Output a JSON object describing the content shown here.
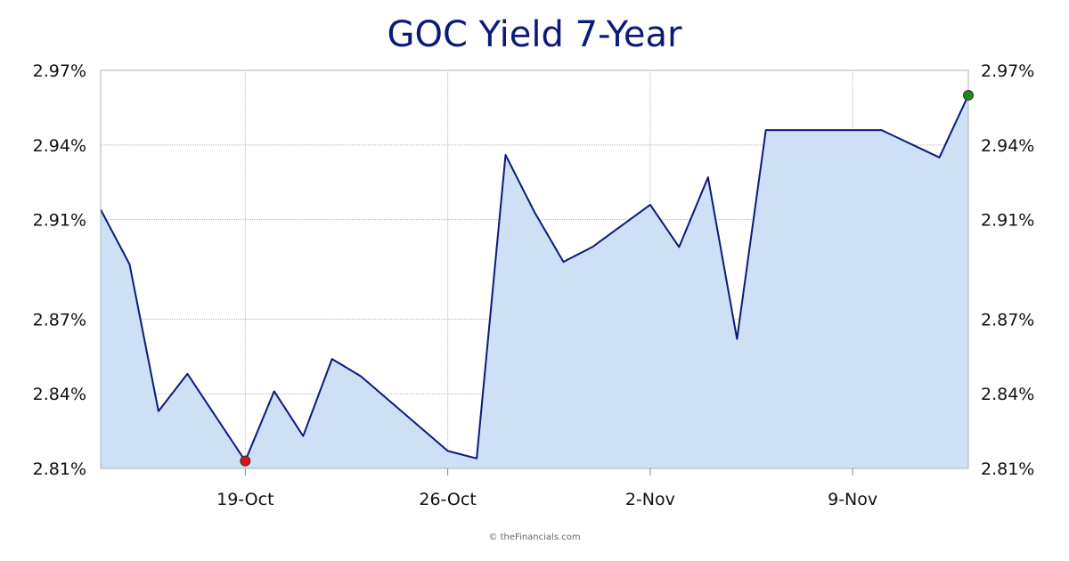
{
  "chart_data": {
    "type": "area",
    "title": "GOC Yield 7-Year",
    "xlabel": "",
    "ylabel": "",
    "ylim": [
      2.81,
      2.97
    ],
    "y_ticks": [
      "2.97%",
      "2.94%",
      "2.91%",
      "2.87%",
      "2.84%",
      "2.81%"
    ],
    "y_tick_values": [
      2.97,
      2.94,
      2.91,
      2.87,
      2.84,
      2.81
    ],
    "x_ticks": [
      "19-Oct",
      "26-Oct",
      "2-Nov",
      "9-Nov"
    ],
    "x_tick_dates": [
      "2018-10-19",
      "2018-10-26",
      "2018-11-02",
      "2018-11-09"
    ],
    "x_range": [
      "2018-10-14",
      "2018-11-13"
    ],
    "grid": true,
    "y_axis_both_sides": true,
    "colors": {
      "line": "#0a1a7a",
      "fill": "#cde0f6",
      "min_marker": "#e0101a",
      "max_marker": "#1a8a1a",
      "title": "#0a1a7a"
    },
    "series": [
      {
        "x": [
          "2018-10-14",
          "2018-10-15",
          "2018-10-16",
          "2018-10-17",
          "2018-10-19",
          "2018-10-20",
          "2018-10-21",
          "2018-10-22",
          "2018-10-23",
          "2018-10-26",
          "2018-10-27",
          "2018-10-28",
          "2018-10-29",
          "2018-10-30",
          "2018-10-31",
          "2018-11-02",
          "2018-11-03",
          "2018-11-04",
          "2018-11-05",
          "2018-11-06",
          "2018-11-07",
          "2018-11-10",
          "2018-11-12",
          "2018-11-13"
        ],
        "values": [
          2.914,
          2.892,
          2.833,
          2.848,
          2.813,
          2.841,
          2.823,
          2.854,
          2.847,
          2.817,
          2.814,
          2.936,
          2.913,
          2.893,
          2.899,
          2.916,
          2.899,
          2.927,
          2.862,
          2.946,
          2.946,
          2.946,
          2.935,
          2.96
        ]
      }
    ],
    "min_point": {
      "x": "2018-10-19",
      "y": 2.813
    },
    "max_point": {
      "x": "2018-11-13",
      "y": 2.96
    }
  },
  "credit": "© theFinancials.com"
}
